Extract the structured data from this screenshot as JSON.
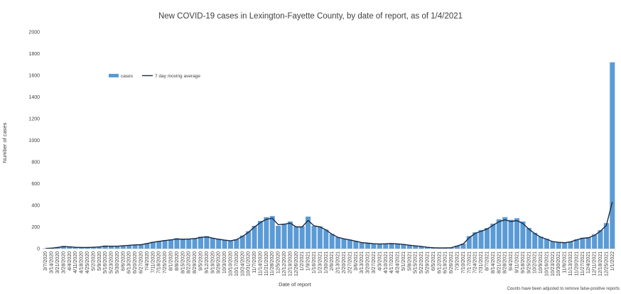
{
  "chart_data": {
    "type": "bar",
    "title": "New COVID-19 cases in Lexington-Fayette County, by date of report, as of 1/4/2021",
    "xlabel": "Date of report",
    "ylabel": "Number of cases",
    "ylim": [
      0,
      2000
    ],
    "yticks": [
      0,
      200,
      400,
      600,
      800,
      1000,
      1200,
      1400,
      1600,
      1800,
      2000
    ],
    "grid": false,
    "legend_position": "top-left",
    "note": "Counts have been adjusted to remove false-positive reports",
    "colors": {
      "bar": "#5b9bd5",
      "line": "#1f2a44"
    },
    "series": [
      {
        "name": "cases",
        "kind": "bar"
      },
      {
        "name": "7 day moving average",
        "kind": "line"
      }
    ],
    "categories": [
      "3/7/2020",
      "3/14/2020",
      "3/21/2020",
      "3/28/2020",
      "4/4/2020",
      "4/11/2020",
      "4/18/2020",
      "4/25/2020",
      "5/2/2020",
      "5/9/2020",
      "5/16/2020",
      "5/23/2020",
      "5/30/2020",
      "6/6/2020",
      "6/13/2020",
      "6/20/2020",
      "6/27/2020",
      "7/4/2020",
      "7/11/2020",
      "7/18/2020",
      "7/25/2020",
      "8/1/2020",
      "8/8/2020",
      "8/15/2020",
      "8/22/2020",
      "8/29/2020",
      "9/5/2020",
      "9/12/2020",
      "9/19/2020",
      "9/26/2020",
      "10/3/2020",
      "10/10/2020",
      "10/17/2020",
      "10/24/2020",
      "10/31/2020",
      "11/7/2020",
      "11/14/2020",
      "11/21/2020",
      "11/28/2020",
      "12/5/2020",
      "12/12/2020",
      "12/19/2020",
      "12/26/2020",
      "1/2/2021",
      "1/9/2021",
      "1/16/2021",
      "1/23/2021",
      "1/30/2021",
      "2/6/2021",
      "2/13/2021",
      "2/20/2021",
      "2/27/2021",
      "3/6/2021",
      "3/13/2021",
      "3/20/2021",
      "3/27/2021",
      "4/3/2021",
      "4/10/2021",
      "4/17/2021",
      "4/24/2021",
      "5/1/2021",
      "5/8/2021",
      "5/15/2021",
      "5/22/2021",
      "5/29/2021",
      "6/5/2021",
      "6/12/2021",
      "6/19/2021",
      "6/26/2021",
      "7/3/2021",
      "7/10/2021",
      "7/17/2021",
      "7/24/2021",
      "7/31/2021",
      "8/7/2021",
      "8/14/2021",
      "8/21/2021",
      "8/28/2021",
      "9/4/2021",
      "9/11/2021",
      "9/18/2021",
      "9/25/2021",
      "10/2/2021",
      "10/9/2021",
      "10/16/2021",
      "10/23/2021",
      "10/30/2021",
      "11/6/2021",
      "11/13/2021",
      "11/20/2021",
      "11/27/2021",
      "12/4/2021",
      "12/11/2021",
      "12/18/2021",
      "12/25/2021",
      "1/1/2022"
    ],
    "tick_labels": [
      "3/7/2020",
      "3/14/2020",
      "3/21/2020",
      "3/28/2020",
      "4/4/2020",
      "4/11/2020",
      "4/18/2020",
      "4/25/2020",
      "5/2/2020",
      "5/9/2020",
      "5/16/2020",
      "5/23/2020",
      "5/30/2020",
      "6/6/2020",
      "6/13/2020",
      "6/20/2020",
      "6/27/2020",
      "7/4/2020",
      "7/11/2020",
      "7/18/2020",
      "7/25/2020",
      "8/1/2020",
      "8/8/2020",
      "8/15/2020",
      "8/22/2020",
      "8/29/2020",
      "9/5/2020",
      "9/12/2020",
      "9/19/2020",
      "9/26/2020",
      "10/3/2020",
      "10/10/2020",
      "10/17/2020",
      "10/24/2020",
      "10/31/2020",
      "11/7/2020",
      "11/14/2020",
      "11/21/2020",
      "11/28/2020",
      "12/5/2020",
      "12/12/2020",
      "12/19/2020",
      "12/26/2020",
      "1/2/2021",
      "1/9/2021",
      "1/16/2021",
      "1/23/2021",
      "1/30/2021",
      "2/6/2021",
      "2/13/2021",
      "2/20/2021",
      "2/27/2021",
      "3/6/2021",
      "3/13/2021",
      "3/20/2021",
      "3/27/2021",
      "4/3/2021",
      "4/10/2021",
      "4/17/2021",
      "4/24/2021",
      "5/1/2021",
      "5/8/2021",
      "5/15/2021",
      "5/22/2021",
      "5/29/2021",
      "6/5/2021",
      "6/12/2021",
      "6/19/2021",
      "6/26/2021",
      "7/3/2021",
      "7/10/2021",
      "7/17/2021",
      "7/24/2021",
      "7/31/2021",
      "8/7/2021",
      "8/14/2021",
      "8/21/2021",
      "8/28/2021",
      "9/4/2021",
      "9/11/2021",
      "9/18/2021",
      "9/25/2021",
      "10/2/2021",
      "10/9/2021",
      "10/16/2021",
      "10/23/2021",
      "10/30/2021",
      "11/6/2021",
      "11/13/2021",
      "11/20/2021",
      "11/27/2021",
      "12/4/2021",
      "12/11/2021",
      "12/18/2021",
      "12/25/2021",
      "1/1/2022"
    ],
    "cases": [
      2,
      8,
      14,
      24,
      20,
      14,
      12,
      12,
      14,
      18,
      28,
      22,
      20,
      28,
      32,
      36,
      38,
      50,
      62,
      70,
      78,
      84,
      96,
      88,
      90,
      96,
      110,
      115,
      98,
      88,
      78,
      70,
      85,
      120,
      160,
      210,
      255,
      290,
      300,
      210,
      230,
      250,
      205,
      205,
      295,
      210,
      205,
      175,
      135,
      105,
      90,
      82,
      70,
      55,
      50,
      45,
      42,
      45,
      48,
      44,
      40,
      32,
      26,
      20,
      12,
      8,
      6,
      6,
      8,
      26,
      45,
      115,
      150,
      170,
      190,
      230,
      270,
      290,
      265,
      280,
      250,
      190,
      145,
      110,
      90,
      65,
      60,
      55,
      65,
      85,
      100,
      105,
      130,
      170,
      235,
      1720
    ],
    "moving_average": [
      1,
      4,
      10,
      18,
      16,
      12,
      10,
      10,
      12,
      15,
      22,
      22,
      22,
      26,
      30,
      34,
      36,
      46,
      58,
      66,
      74,
      80,
      88,
      86,
      88,
      92,
      102,
      108,
      96,
      86,
      78,
      72,
      82,
      112,
      150,
      198,
      240,
      270,
      280,
      220,
      225,
      235,
      200,
      200,
      260,
      210,
      200,
      172,
      132,
      104,
      90,
      80,
      68,
      55,
      50,
      45,
      42,
      44,
      46,
      43,
      38,
      31,
      25,
      19,
      12,
      8,
      6,
      6,
      8,
      24,
      42,
      100,
      140,
      160,
      180,
      215,
      248,
      265,
      250,
      258,
      232,
      180,
      138,
      105,
      86,
      64,
      58,
      54,
      62,
      80,
      95,
      100,
      122,
      160,
      215,
      430
    ]
  }
}
